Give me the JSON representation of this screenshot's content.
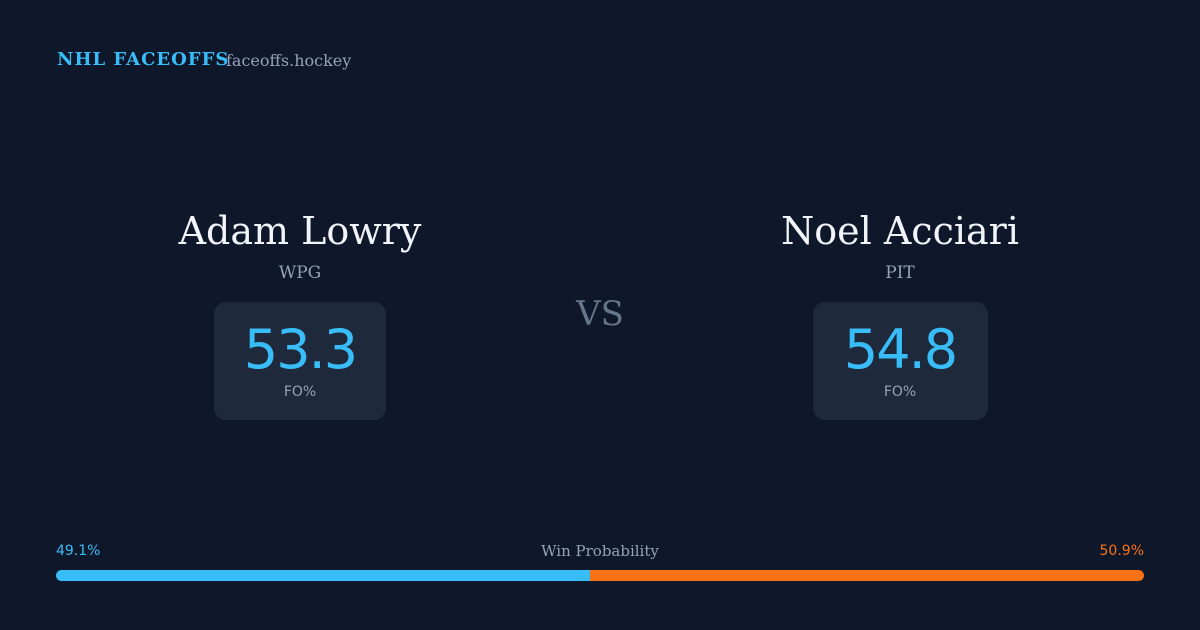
{
  "header": {
    "brand": "NHL FACEOFFS",
    "site": "faceoffs.hockey"
  },
  "players": [
    {
      "name": "Adam Lowry",
      "team": "WPG",
      "stat": 53.3,
      "stat_label": "FO%"
    },
    {
      "name": "Noel Acciari",
      "team": "PIT",
      "stat": 54.8,
      "stat_label": "FO%"
    }
  ],
  "versus": "VS",
  "win_probability": {
    "label": "Win Probability",
    "values": [
      49.1,
      50.9
    ],
    "value_labels": [
      "49.1%",
      "50.9%"
    ],
    "colors": [
      "#38bdf8",
      "#f97316"
    ]
  }
}
